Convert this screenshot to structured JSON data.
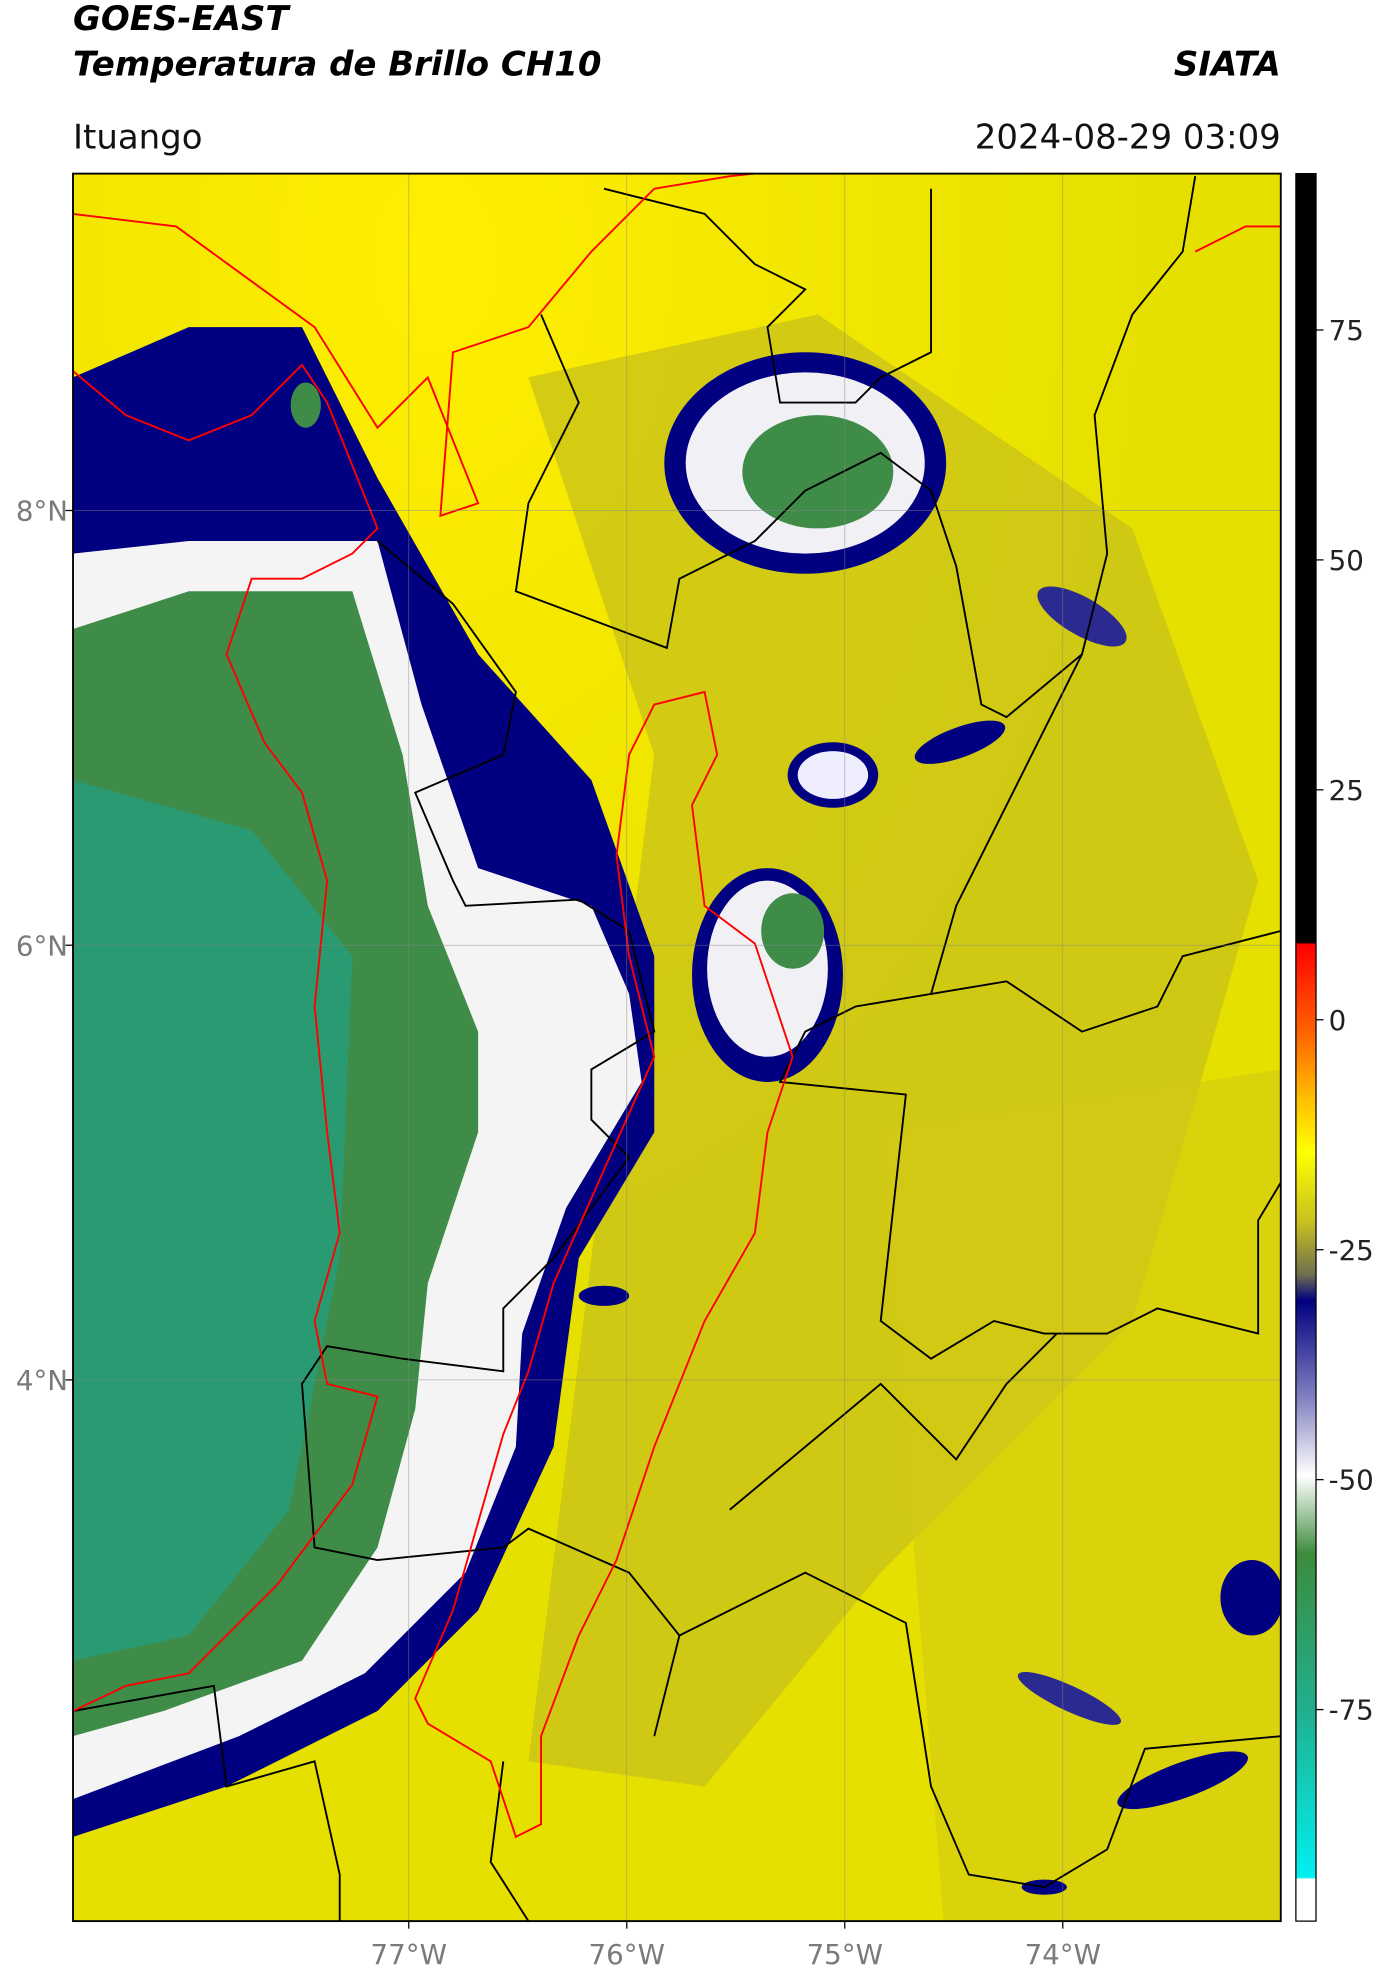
{
  "header": {
    "title": "GOES-EAST",
    "subtitle": "Temperatura de Brillo CH10",
    "source": "SIATA",
    "region": "Ituango",
    "datetime": "2024-08-29 03:09"
  },
  "map": {
    "xlim": [
      -78.54,
      -73.0
    ],
    "ylim": [
      1.51,
      9.55
    ],
    "xticks": [
      {
        "value": -77,
        "label": "77°W"
      },
      {
        "value": -76,
        "label": "76°W"
      },
      {
        "value": -75,
        "label": "75°W"
      },
      {
        "value": -74,
        "label": "74°W"
      }
    ],
    "yticks": [
      {
        "value": 8,
        "label": "8°N"
      },
      {
        "value": 6,
        "label": "6°N"
      },
      {
        "value": 4,
        "label": "4°N"
      }
    ],
    "grid": true
  },
  "colorbar": {
    "lim": [
      -98,
      92
    ],
    "ticks": [
      75,
      50,
      25,
      0,
      -25,
      -50,
      -75
    ]
  }
}
